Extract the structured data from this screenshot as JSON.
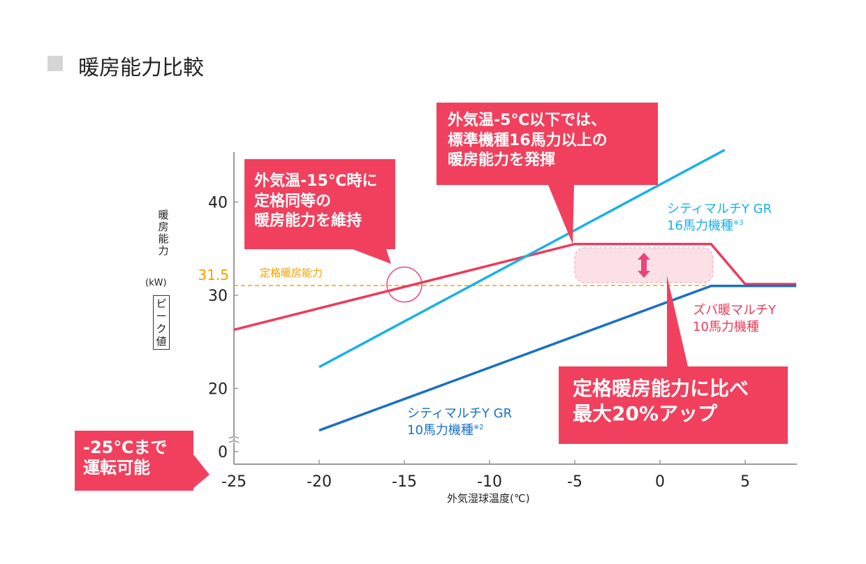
{
  "title": "暖房能力比較",
  "colors": {
    "red": "#ee3a5a",
    "cyan": "#18b2e6",
    "blue": "#1a70c2",
    "orange": "#f0a000",
    "callout": "#f1405d"
  },
  "chart_data": {
    "type": "line",
    "xlabel": "外気湿球温度(℃)",
    "ylabel": "暖房能力",
    "yunit": "(kW)",
    "ynote": "ピーク値",
    "xlim": [
      -25,
      8
    ],
    "ylim": [
      13,
      46
    ],
    "y_axis_break": true,
    "xticks": [
      "-25",
      "-20",
      "-15",
      "-10",
      "-5",
      "0",
      "5"
    ],
    "yticks": [
      "0",
      "20",
      "30",
      "40"
    ],
    "reference_line": {
      "value": 31.5,
      "value_label": "31.5",
      "label": "定格暖房能力",
      "color": "#f0a000",
      "style": "dashed"
    },
    "series": [
      {
        "name": "ズバ暖マルチY 10馬力機種",
        "color": "#ee3a5a",
        "x": [
          -25,
          -5,
          3,
          5,
          8
        ],
        "y": [
          26.3,
          35.5,
          35.5,
          31.2,
          31.2
        ]
      },
      {
        "name": "シティマルチY GR 16馬力機種",
        "note": "※3",
        "color": "#18b2e6",
        "x": [
          -20,
          3.8
        ],
        "y": [
          22.3,
          45.6
        ]
      },
      {
        "name": "シティマルチY GR 10馬力機種",
        "note": "※2",
        "color": "#1a70c2",
        "x": [
          -20,
          3,
          8
        ],
        "y": [
          15.5,
          31.0,
          31.0
        ]
      }
    ],
    "annotations": [
      {
        "lines": [
          "外気温-15℃時に",
          "定格同等の",
          "暖房能力を維持"
        ]
      },
      {
        "lines": [
          "外気温-5℃以下では、",
          "標準機種16馬力以上の",
          "暖房能力を発揮"
        ]
      },
      {
        "lines": [
          "定格暖房能力に比べ",
          "最大20%アップ"
        ]
      },
      {
        "lines": [
          "-25℃まで",
          "運転可能"
        ]
      }
    ]
  }
}
